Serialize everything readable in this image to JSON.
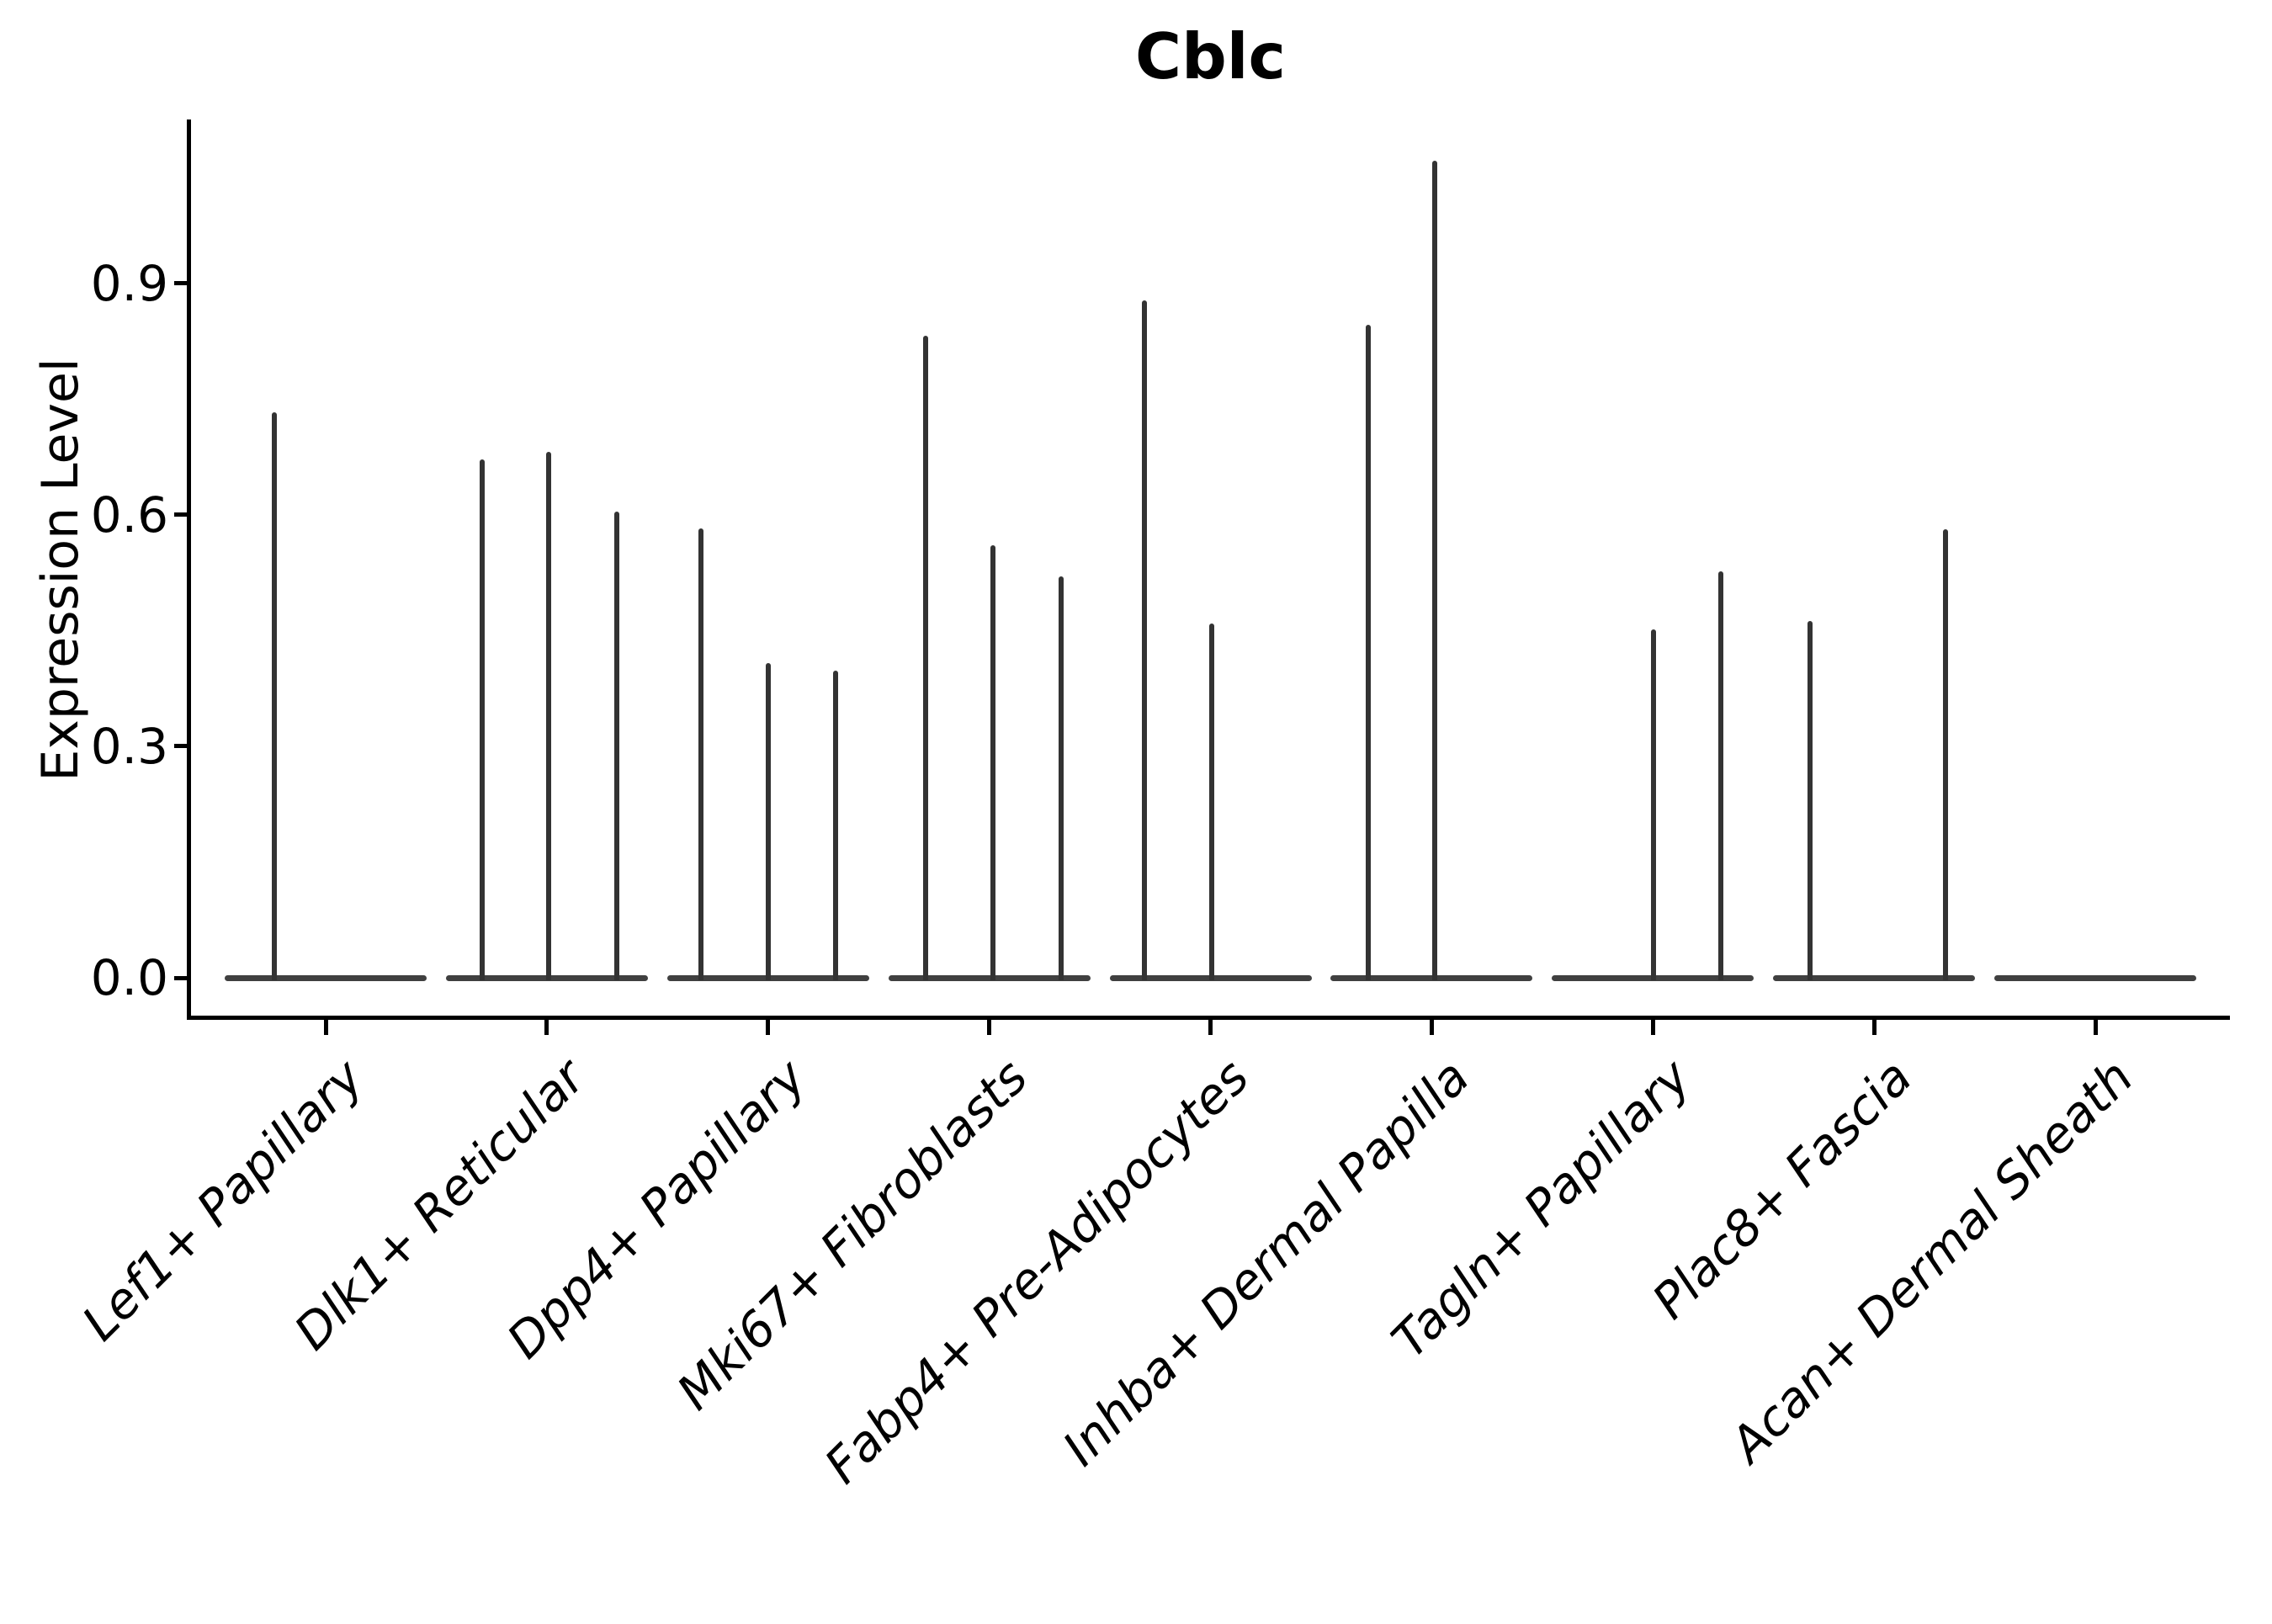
{
  "title": "Cblc",
  "ylabel": "Expression Level",
  "colors": {
    "background": "#ffffff",
    "axis": "#000000",
    "text": "#000000",
    "violin_spike": "#333333",
    "violin_base": "#404040"
  },
  "chart_data": {
    "type": "violin",
    "title": "Cblc",
    "xlabel": "",
    "ylabel": "Expression Level",
    "ylim": [
      0,
      1.11
    ],
    "yticks": [
      "0.0",
      "0.3",
      "0.6",
      "0.9"
    ],
    "ytick_values": [
      0.0,
      0.3,
      0.6,
      0.9
    ],
    "grid": false,
    "legend": false,
    "categories": [
      "Lef1+ Papillary",
      "Dlk1+ Reticular",
      "Dpp4+ Papillary",
      "Mki67+ Fibroblasts",
      "Fabp4+ Pre-Adipocytes",
      "Inhba+ Dermal Papilla",
      "Tagln+ Papillary",
      "Plac8+ Fascia",
      "Acan+ Dermal Sheath"
    ],
    "series": [
      {
        "category": "Lef1+ Papillary",
        "spikes": [
          {
            "dx": -61,
            "value": 0.733
          }
        ]
      },
      {
        "category": "Dlk1+ Reticular",
        "spikes": [
          {
            "dx": -77,
            "value": 0.672
          },
          {
            "dx": 2,
            "value": 0.682
          },
          {
            "dx": 83,
            "value": 0.604
          }
        ]
      },
      {
        "category": "Dpp4+ Papillary",
        "spikes": [
          {
            "dx": -80,
            "value": 0.583
          },
          {
            "dx": 0,
            "value": 0.408
          },
          {
            "dx": 80,
            "value": 0.398
          }
        ]
      },
      {
        "category": "Mki67+ Fibroblasts",
        "spikes": [
          {
            "dx": -76,
            "value": 0.832
          },
          {
            "dx": 4,
            "value": 0.561
          },
          {
            "dx": 85,
            "value": 0.52
          }
        ]
      },
      {
        "category": "Fabp4+ Pre-Adipocytes",
        "spikes": [
          {
            "dx": -79,
            "value": 0.878
          },
          {
            "dx": 1,
            "value": 0.459
          }
        ]
      },
      {
        "category": "Inhba+ Dermal Papilla",
        "spikes": [
          {
            "dx": -75,
            "value": 0.847
          },
          {
            "dx": 4,
            "value": 1.059
          }
        ]
      },
      {
        "category": "Tagln+ Papillary",
        "spikes": [
          {
            "dx": 1,
            "value": 0.452
          },
          {
            "dx": 81,
            "value": 0.527
          }
        ]
      },
      {
        "category": "Plac8+ Fascia",
        "spikes": [
          {
            "dx": -76,
            "value": 0.463
          },
          {
            "dx": 85,
            "value": 0.581
          }
        ]
      },
      {
        "category": "Acan+ Dermal Sheath",
        "spikes": []
      }
    ]
  }
}
